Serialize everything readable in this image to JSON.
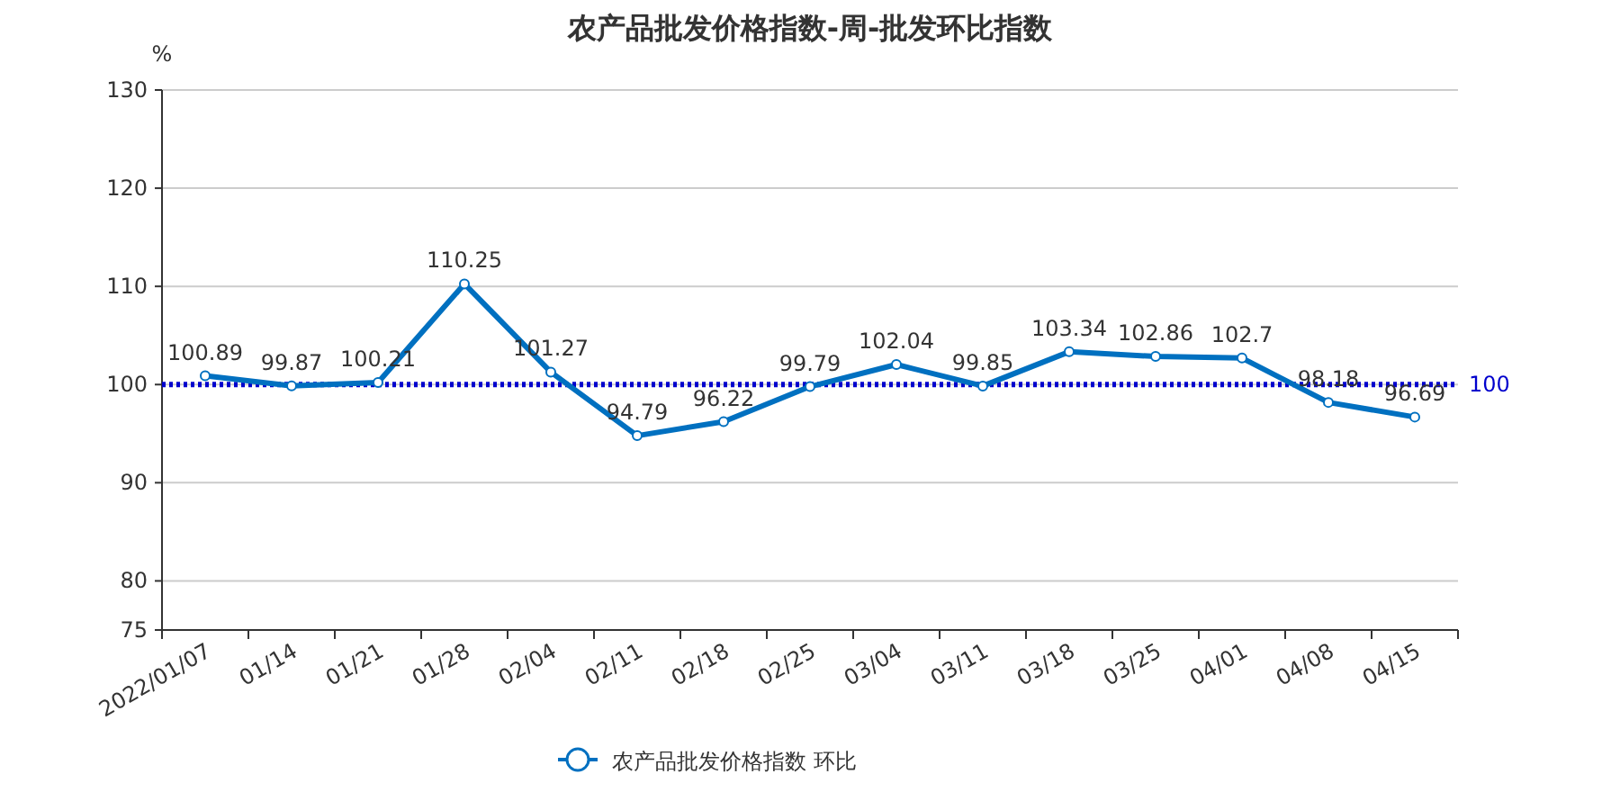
{
  "chart_data": {
    "type": "line",
    "title": "农产品批发价格指数-周-批发环比指数",
    "ylabel": "%",
    "categories": [
      "2022/01/07",
      "01/14",
      "01/21",
      "01/28",
      "02/04",
      "02/11",
      "02/18",
      "02/25",
      "03/04",
      "03/11",
      "03/18",
      "03/25",
      "04/01",
      "04/08",
      "04/15"
    ],
    "series": [
      {
        "name": "农产品批发价格指数  环比",
        "color": "#0070c0",
        "values": [
          100.89,
          99.87,
          100.21,
          110.25,
          101.27,
          94.79,
          96.22,
          99.79,
          102.04,
          99.85,
          103.34,
          102.86,
          102.7,
          98.18,
          96.69
        ]
      }
    ],
    "ylim": [
      75,
      130
    ],
    "yticks": [
      75,
      80,
      90,
      100,
      110,
      120,
      130
    ],
    "ref_lines": [
      {
        "axis": "y",
        "value": 100,
        "label": "100",
        "color": "#0000cd",
        "line_style": "dotted"
      }
    ],
    "data_labels": true,
    "grid": "y",
    "legend": "bottom",
    "marker": "circle",
    "line_style": "solid"
  }
}
